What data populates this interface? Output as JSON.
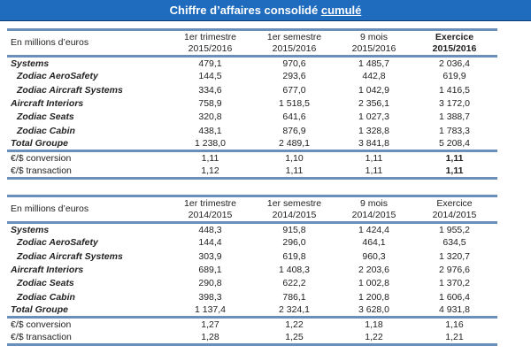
{
  "title": {
    "text": "Chiffre d’affaires consolidé ",
    "underlined": "cumulé"
  },
  "tables": [
    {
      "header": {
        "label": "En millions d’euros",
        "cols": [
          [
            "1er trimestre",
            "2015/2016"
          ],
          [
            "1er semestre",
            "2015/2016"
          ],
          [
            "9 mois",
            "2015/2016"
          ],
          [
            "Exercice",
            "2015/2016"
          ]
        ]
      },
      "rows": [
        {
          "label": "Systems",
          "type": "seg",
          "values": [
            "479,1",
            "970,6",
            "1 485,7",
            "2 036,4"
          ]
        },
        {
          "label": "Zodiac AeroSafety",
          "type": "sub",
          "values": [
            "144,5",
            "293,6",
            "442,8",
            "619,9"
          ]
        },
        {
          "label": "Zodiac Aircraft Systems",
          "type": "sub",
          "values": [
            "334,6",
            "677,0",
            "1 042,9",
            "1 416,5"
          ]
        },
        {
          "label": "Aircraft Interiors",
          "type": "seg",
          "values": [
            "758,9",
            "1 518,5",
            "2 356,1",
            "3 172,0"
          ]
        },
        {
          "label": "Zodiac Seats",
          "type": "sub",
          "values": [
            "320,8",
            "641,6",
            "1 027,3",
            "1 388,7"
          ]
        },
        {
          "label": "Zodiac Cabin",
          "type": "sub",
          "values": [
            "438,1",
            "876,9",
            "1 328,8",
            "1 783,3"
          ]
        },
        {
          "label": "Total Groupe",
          "type": "total",
          "values": [
            "1 238,0",
            "2 489,1",
            "3 841,8",
            "5 208,4"
          ]
        }
      ],
      "fx": [
        {
          "label": "€/$ conversion",
          "values": [
            "1,11",
            "1,10",
            "1,11",
            "1,11"
          ]
        },
        {
          "label": "€/$ transaction",
          "values": [
            "1,12",
            "1,11",
            "1,11",
            "1,11"
          ]
        }
      ]
    },
    {
      "header": {
        "label": "En millions d’euros",
        "cols": [
          [
            "1er trimestre",
            "2014/2015"
          ],
          [
            "1er semestre",
            "2014/2015"
          ],
          [
            "9 mois",
            "2014/2015"
          ],
          [
            "Exercice",
            "2014/2015"
          ]
        ]
      },
      "rows": [
        {
          "label": "Systems",
          "type": "seg",
          "values": [
            "448,3",
            "915,8",
            "1 424,4",
            "1 955,2"
          ]
        },
        {
          "label": "Zodiac AeroSafety",
          "type": "sub",
          "values": [
            "144,4",
            "296,0",
            "464,1",
            "634,5"
          ]
        },
        {
          "label": "Zodiac Aircraft Systems",
          "type": "sub",
          "values": [
            "303,9",
            "619,8",
            "960,3",
            "1 320,7"
          ]
        },
        {
          "label": "Aircraft Interiors",
          "type": "seg",
          "values": [
            "689,1",
            "1 408,3",
            "2 203,6",
            "2 976,6"
          ]
        },
        {
          "label": "Zodiac Seats",
          "type": "sub",
          "values": [
            "290,8",
            "622,2",
            "1 002,8",
            "1 370,2"
          ]
        },
        {
          "label": "Zodiac Cabin",
          "type": "sub",
          "values": [
            "398,3",
            "786,1",
            "1 200,8",
            "1 606,4"
          ]
        },
        {
          "label": "Total Groupe",
          "type": "total",
          "values": [
            "1 137,4",
            "2 324,1",
            "3 628,0",
            "4 931,8"
          ]
        }
      ],
      "fx": [
        {
          "label": "€/$ conversion",
          "values": [
            "1,27",
            "1,22",
            "1,18",
            "1,16"
          ]
        },
        {
          "label": "€/$ transaction",
          "values": [
            "1,28",
            "1,25",
            "1,22",
            "1,21"
          ]
        }
      ]
    }
  ],
  "colors": {
    "title_bar": "#1f6bbd",
    "rule": "#6b8fb8"
  }
}
